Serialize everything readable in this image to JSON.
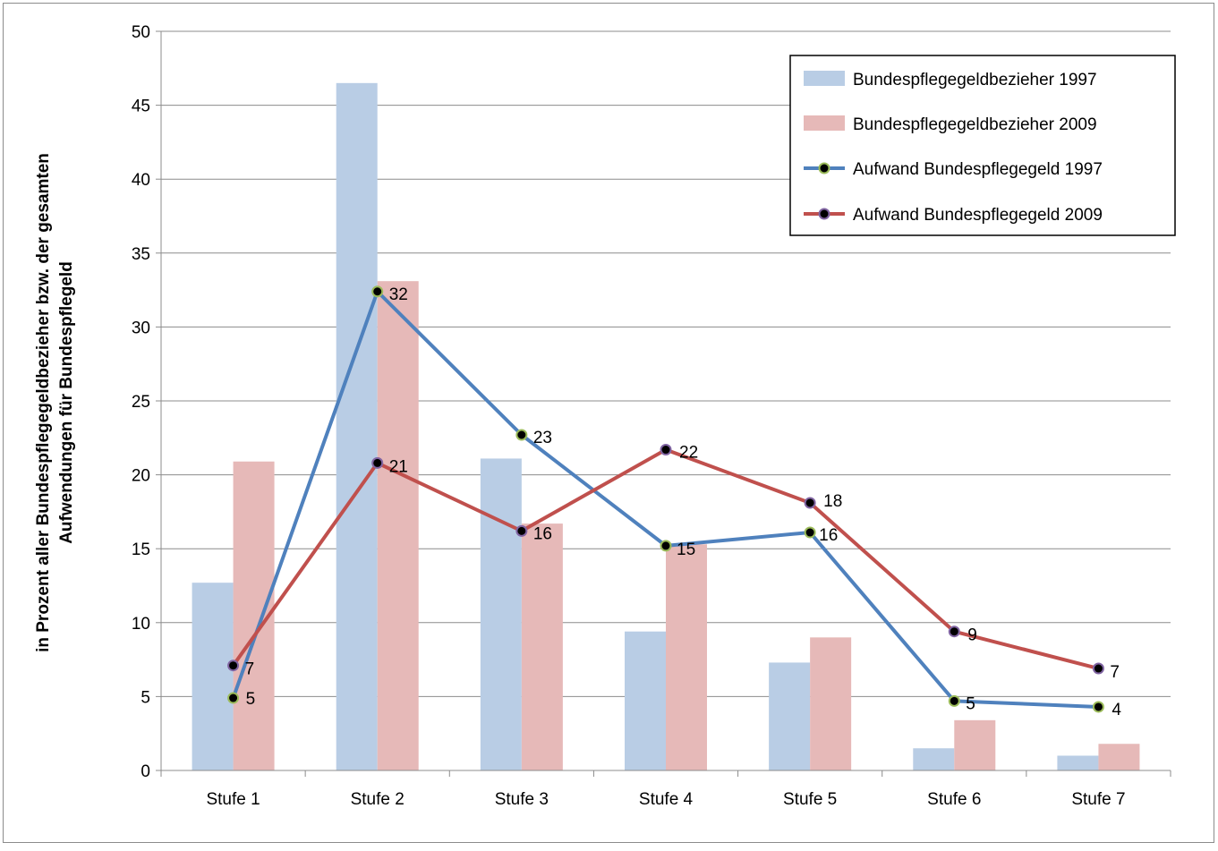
{
  "chart_data": {
    "type": "bar",
    "categories": [
      "Stufe 1",
      "Stufe 2",
      "Stufe 3",
      "Stufe 4",
      "Stufe 5",
      "Stufe 6",
      "Stufe 7"
    ],
    "ylabel_lines": [
      "in Prozent aller Bundespflegegeldbezieher  bzw. der gesamten",
      "Aufwendungen für Bundespflegeld"
    ],
    "ylim": [
      0,
      50
    ],
    "yticks": [
      0,
      5,
      10,
      15,
      20,
      25,
      30,
      35,
      40,
      45,
      50
    ],
    "grid": true,
    "legend_position": "top-right",
    "bar_series": [
      {
        "name": "Bundespflegegeldbezieher 1997",
        "color": "#b9cde5",
        "values": [
          12.7,
          46.5,
          21.1,
          9.4,
          7.3,
          1.5,
          1.0
        ]
      },
      {
        "name": "Bundespflegegeldbezieher 2009",
        "color": "#e6b9b8",
        "values": [
          20.9,
          33.1,
          16.7,
          15.3,
          9.0,
          3.4,
          1.8
        ]
      }
    ],
    "line_series": [
      {
        "name": "Aufwand Bundespflegegeld 1997",
        "color": "#4f81bd",
        "marker_ring": "#9bbb59",
        "values": [
          4.9,
          32.4,
          22.7,
          15.2,
          16.1,
          4.7,
          4.3
        ],
        "labels": [
          "5",
          "32",
          "23",
          "15",
          "16",
          "5",
          "4"
        ]
      },
      {
        "name": "Aufwand Bundespflegegeld 2009",
        "color": "#c0504d",
        "marker_ring": "#8064a2",
        "values": [
          7.1,
          20.8,
          16.2,
          21.7,
          18.1,
          9.4,
          6.9
        ],
        "labels": [
          "7",
          "21",
          "16",
          "22",
          "18",
          "9",
          "7"
        ]
      }
    ]
  }
}
